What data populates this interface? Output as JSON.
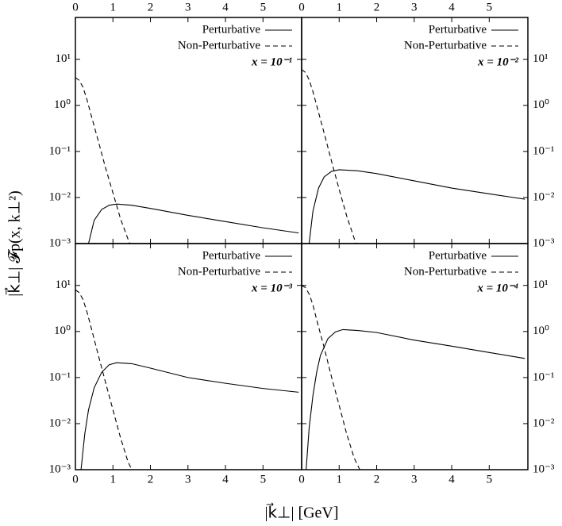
{
  "y_label": "|k⃗⊥| 𝓕p(x, k⊥²)",
  "x_label": "|k⃗⊥| [GeV]",
  "chart_data": [
    {
      "type": "line",
      "annotation": "x = 10⁻¹",
      "log_y": true,
      "legend": "upper right",
      "xtick_side": "top",
      "ytick_side": "left",
      "xlim": [
        0,
        6.03
      ],
      "ylim": [
        0.001,
        81
      ],
      "xticks": [
        0,
        1,
        2,
        3,
        4,
        5
      ],
      "yticks": [
        {
          "value": 0.001,
          "label": "10⁻³"
        },
        {
          "value": 0.01,
          "label": "10⁻²"
        },
        {
          "value": 0.1,
          "label": "10⁻¹"
        },
        {
          "value": 1,
          "label": "10⁰"
        },
        {
          "value": 10,
          "label": "10¹"
        }
      ],
      "series": [
        {
          "name": "Perturbative",
          "color": "#000000",
          "dash": false,
          "x": [
            0.35,
            0.5,
            0.7,
            0.9,
            1.1,
            1.5,
            2,
            3,
            4,
            5,
            5.95
          ],
          "values": [
            0.001,
            0.0032,
            0.0055,
            0.0068,
            0.0072,
            0.0068,
            0.0058,
            0.0041,
            0.003,
            0.0022,
            0.0017
          ]
        },
        {
          "name": "Non-Perturbative",
          "color": "#000000",
          "dash": true,
          "x": [
            0,
            0.1,
            0.2,
            0.3,
            0.4,
            0.6,
            0.8,
            1.0,
            1.2,
            1.4,
            1.45
          ],
          "values": [
            4,
            3.5,
            2.5,
            1.4,
            0.7,
            0.18,
            0.045,
            0.0126,
            0.0035,
            0.00126,
            0.001
          ]
        }
      ]
    },
    {
      "type": "line",
      "annotation": "x = 10⁻²",
      "log_y": true,
      "legend": "upper right",
      "xtick_side": "top",
      "ytick_side": "right",
      "xlim": [
        0,
        6.03
      ],
      "ylim": [
        0.001,
        81
      ],
      "xticks": [
        0,
        1,
        2,
        3,
        4,
        5
      ],
      "yticks": [
        {
          "value": 0.001,
          "label": "10⁻³"
        },
        {
          "value": 0.01,
          "label": "10⁻²"
        },
        {
          "value": 0.1,
          "label": "10⁻¹"
        },
        {
          "value": 1,
          "label": "10⁰"
        },
        {
          "value": 10,
          "label": "10¹"
        }
      ],
      "series": [
        {
          "name": "Perturbative",
          "color": "#000000",
          "dash": false,
          "x": [
            0.2,
            0.3,
            0.45,
            0.6,
            0.8,
            1.0,
            1.5,
            2,
            3,
            4,
            5,
            5.95
          ],
          "values": [
            0.001,
            0.005,
            0.016,
            0.028,
            0.037,
            0.04,
            0.038,
            0.033,
            0.023,
            0.016,
            0.012,
            0.0092
          ]
        },
        {
          "name": "Non-Perturbative",
          "color": "#000000",
          "dash": true,
          "x": [
            0,
            0.1,
            0.2,
            0.3,
            0.4,
            0.6,
            0.8,
            1.0,
            1.2,
            1.4,
            1.45
          ],
          "values": [
            6,
            5.2,
            3.6,
            2,
            1,
            0.25,
            0.06,
            0.015,
            0.004,
            0.0013,
            0.001
          ]
        }
      ]
    },
    {
      "type": "line",
      "annotation": "x = 10⁻³",
      "log_y": true,
      "legend": "upper right",
      "xtick_side": "bottom",
      "ytick_side": "left",
      "xlim": [
        0,
        6.03
      ],
      "ylim": [
        0.001,
        81
      ],
      "xticks": [
        0,
        1,
        2,
        3,
        4,
        5
      ],
      "yticks": [
        {
          "value": 0.001,
          "label": "10⁻³"
        },
        {
          "value": 0.01,
          "label": "10⁻²"
        },
        {
          "value": 0.1,
          "label": "10⁻¹"
        },
        {
          "value": 1,
          "label": "10⁰"
        },
        {
          "value": 10,
          "label": "10¹"
        }
      ],
      "series": [
        {
          "name": "Perturbative",
          "color": "#000000",
          "dash": false,
          "x": [
            0.15,
            0.25,
            0.35,
            0.5,
            0.7,
            0.9,
            1.1,
            1.5,
            2,
            3,
            4,
            5,
            5.95
          ],
          "values": [
            0.001,
            0.006,
            0.02,
            0.06,
            0.13,
            0.19,
            0.21,
            0.2,
            0.16,
            0.1,
            0.075,
            0.058,
            0.048
          ]
        },
        {
          "name": "Non-Perturbative",
          "color": "#000000",
          "dash": true,
          "x": [
            0,
            0.1,
            0.2,
            0.3,
            0.4,
            0.6,
            0.8,
            1.0,
            1.2,
            1.4,
            1.5
          ],
          "values": [
            8,
            7,
            5,
            2.8,
            1.4,
            0.33,
            0.08,
            0.02,
            0.005,
            0.0015,
            0.001
          ]
        }
      ]
    },
    {
      "type": "line",
      "annotation": "x = 10⁻⁴",
      "log_y": true,
      "legend": "upper right",
      "xtick_side": "bottom",
      "ytick_side": "right",
      "xlim": [
        0,
        6.03
      ],
      "ylim": [
        0.001,
        81
      ],
      "xticks": [
        0,
        1,
        2,
        3,
        4,
        5
      ],
      "yticks": [
        {
          "value": 0.001,
          "label": "10⁻³"
        },
        {
          "value": 0.01,
          "label": "10⁻²"
        },
        {
          "value": 0.1,
          "label": "10⁻¹"
        },
        {
          "value": 1,
          "label": "10⁰"
        },
        {
          "value": 10,
          "label": "10¹"
        }
      ],
      "series": [
        {
          "name": "Perturbative",
          "color": "#000000",
          "dash": false,
          "x": [
            0.12,
            0.2,
            0.3,
            0.4,
            0.5,
            0.7,
            0.9,
            1.1,
            1.5,
            2,
            3,
            4,
            5,
            5.95
          ],
          "values": [
            0.001,
            0.008,
            0.04,
            0.13,
            0.3,
            0.7,
            0.98,
            1.1,
            1.05,
            0.95,
            0.65,
            0.48,
            0.35,
            0.26
          ]
        },
        {
          "name": "Non-Perturbative",
          "color": "#000000",
          "dash": true,
          "x": [
            0,
            0.1,
            0.2,
            0.3,
            0.4,
            0.6,
            0.8,
            1.0,
            1.2,
            1.4,
            1.55
          ],
          "values": [
            10,
            9,
            6.5,
            3.8,
            1.8,
            0.45,
            0.1,
            0.025,
            0.006,
            0.0018,
            0.001
          ]
        }
      ]
    }
  ]
}
